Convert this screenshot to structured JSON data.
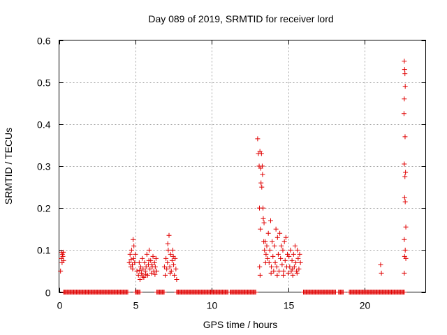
{
  "chart_data": {
    "type": "scatter",
    "title": "Day 089 of 2019, SRMTID for receiver lord",
    "xlabel": "GPS time / hours",
    "ylabel": "SRMTID / TECUs",
    "xlim": [
      0,
      24
    ],
    "ylim": [
      0,
      0.6
    ],
    "xticks": [
      0,
      5,
      10,
      15,
      20
    ],
    "xtick_labels": [
      "0",
      "5",
      "10",
      "15",
      "20"
    ],
    "yticks": [
      0,
      0.1,
      0.2,
      0.3,
      0.4,
      0.5,
      0.6
    ],
    "ytick_labels": [
      "0",
      "0.1",
      "0.2",
      "0.3",
      "0.4",
      "0.5",
      "0.6"
    ],
    "grid": true,
    "marker": "+",
    "color": "#e00000",
    "series": [
      {
        "name": "SRMTID",
        "points": [
          [
            0.1,
            0.05
          ],
          [
            0.15,
            0.08
          ],
          [
            0.18,
            0.095
          ],
          [
            0.2,
            0.07
          ],
          [
            0.22,
            0.09
          ],
          [
            0.25,
            0.085
          ],
          [
            0.28,
            0.095
          ],
          [
            0.3,
            0.075
          ],
          [
            4.6,
            0.07
          ],
          [
            4.65,
            0.09
          ],
          [
            4.7,
            0.06
          ],
          [
            4.75,
            0.1
          ],
          [
            4.8,
            0.065
          ],
          [
            4.85,
            0.125
          ],
          [
            4.88,
            0.08
          ],
          [
            4.9,
            0.11
          ],
          [
            4.95,
            0.07
          ],
          [
            5.0,
            0.09
          ],
          [
            4.72,
            0.078
          ],
          [
            4.82,
            0.055
          ],
          [
            5.1,
            0.05
          ],
          [
            5.2,
            0.04
          ],
          [
            5.25,
            0.07
          ],
          [
            5.3,
            0.03
          ],
          [
            5.35,
            0.06
          ],
          [
            5.4,
            0.045
          ],
          [
            5.45,
            0.08
          ],
          [
            5.5,
            0.055
          ],
          [
            5.55,
            0.035
          ],
          [
            5.6,
            0.07
          ],
          [
            5.65,
            0.05
          ],
          [
            5.7,
            0.06
          ],
          [
            5.75,
            0.09
          ],
          [
            5.8,
            0.04
          ],
          [
            5.85,
            0.065
          ],
          [
            5.9,
            0.1
          ],
          [
            5.95,
            0.055
          ],
          [
            6.0,
            0.075
          ],
          [
            6.05,
            0.045
          ],
          [
            6.1,
            0.06
          ],
          [
            6.15,
            0.085
          ],
          [
            6.2,
            0.05
          ],
          [
            6.25,
            0.07
          ],
          [
            6.3,
            0.06
          ],
          [
            6.35,
            0.08
          ],
          [
            6.4,
            0.05
          ],
          [
            5.28,
            0.052
          ],
          [
            5.48,
            0.038
          ],
          [
            5.68,
            0.042
          ],
          [
            5.88,
            0.075
          ],
          [
            6.08,
            0.065
          ],
          [
            6.28,
            0.042
          ],
          [
            6.9,
            0.06
          ],
          [
            6.95,
            0.04
          ],
          [
            7.0,
            0.08
          ],
          [
            7.05,
            0.055
          ],
          [
            7.1,
            0.07
          ],
          [
            7.15,
            0.1
          ],
          [
            7.2,
            0.135
          ],
          [
            7.25,
            0.06
          ],
          [
            7.3,
            0.09
          ],
          [
            7.35,
            0.05
          ],
          [
            7.4,
            0.075
          ],
          [
            7.45,
            0.1
          ],
          [
            7.5,
            0.065
          ],
          [
            7.55,
            0.04
          ],
          [
            7.6,
            0.08
          ],
          [
            7.65,
            0.055
          ],
          [
            7.7,
            0.03
          ],
          [
            7.12,
            0.115
          ],
          [
            7.28,
            0.045
          ],
          [
            7.48,
            0.085
          ],
          [
            13.0,
            0.365
          ],
          [
            13.05,
            0.33
          ],
          [
            13.1,
            0.3
          ],
          [
            13.12,
            0.2
          ],
          [
            13.15,
            0.335
          ],
          [
            13.18,
            0.15
          ],
          [
            13.2,
            0.295
          ],
          [
            13.22,
            0.26
          ],
          [
            13.25,
            0.33
          ],
          [
            13.27,
            0.25
          ],
          [
            13.3,
            0.3
          ],
          [
            13.32,
            0.28
          ],
          [
            13.35,
            0.2
          ],
          [
            13.37,
            0.175
          ],
          [
            13.4,
            0.12
          ],
          [
            13.42,
            0.165
          ],
          [
            13.45,
            0.1
          ],
          [
            13.5,
            0.12
          ],
          [
            13.55,
            0.09
          ],
          [
            13.6,
            0.11
          ],
          [
            13.65,
            0.08
          ],
          [
            13.7,
            0.14
          ],
          [
            13.75,
            0.07
          ],
          [
            13.8,
            0.1
          ],
          [
            13.85,
            0.17
          ],
          [
            13.9,
            0.06
          ],
          [
            13.95,
            0.12
          ],
          [
            14.0,
            0.085
          ],
          [
            14.05,
            0.05
          ],
          [
            14.1,
            0.11
          ],
          [
            14.15,
            0.07
          ],
          [
            14.2,
            0.15
          ],
          [
            14.25,
            0.06
          ],
          [
            14.3,
            0.13
          ],
          [
            14.35,
            0.09
          ],
          [
            14.4,
            0.05
          ],
          [
            14.45,
            0.14
          ],
          [
            14.5,
            0.08
          ],
          [
            14.55,
            0.11
          ],
          [
            14.6,
            0.065
          ],
          [
            14.65,
            0.1
          ],
          [
            14.7,
            0.05
          ],
          [
            14.75,
            0.12
          ],
          [
            14.8,
            0.075
          ],
          [
            14.85,
            0.13
          ],
          [
            14.9,
            0.06
          ],
          [
            14.95,
            0.09
          ],
          [
            15.0,
            0.045
          ],
          [
            15.05,
            0.085
          ],
          [
            15.1,
            0.06
          ],
          [
            15.15,
            0.1
          ],
          [
            15.2,
            0.05
          ],
          [
            15.25,
            0.075
          ],
          [
            15.3,
            0.04
          ],
          [
            15.35,
            0.09
          ],
          [
            15.4,
            0.06
          ],
          [
            15.45,
            0.11
          ],
          [
            15.5,
            0.07
          ],
          [
            15.55,
            0.05
          ],
          [
            15.6,
            0.1
          ],
          [
            15.65,
            0.08
          ],
          [
            15.7,
            0.055
          ],
          [
            15.75,
            0.09
          ],
          [
            15.8,
            0.07
          ],
          [
            13.13,
            0.06
          ],
          [
            13.16,
            0.04
          ],
          [
            13.52,
            0.07
          ],
          [
            13.88,
            0.045
          ],
          [
            14.28,
            0.04
          ],
          [
            14.68,
            0.04
          ],
          [
            15.28,
            0.055
          ],
          [
            15.58,
            0.045
          ],
          [
            21.05,
            0.065
          ],
          [
            21.1,
            0.045
          ],
          [
            22.6,
            0.55
          ],
          [
            22.62,
            0.53
          ],
          [
            22.64,
            0.52
          ],
          [
            22.66,
            0.49
          ],
          [
            22.6,
            0.46
          ],
          [
            22.58,
            0.425
          ],
          [
            22.65,
            0.37
          ],
          [
            22.6,
            0.305
          ],
          [
            22.68,
            0.285
          ],
          [
            22.64,
            0.275
          ],
          [
            22.62,
            0.225
          ],
          [
            22.66,
            0.215
          ],
          [
            22.7,
            0.155
          ],
          [
            22.6,
            0.125
          ],
          [
            22.66,
            0.1
          ],
          [
            22.62,
            0.085
          ],
          [
            22.7,
            0.08
          ],
          [
            22.6,
            0.045
          ]
        ],
        "zero_ranges": [
          [
            0.3,
            4.5
          ],
          [
            5.0,
            5.3
          ],
          [
            6.4,
            6.9
          ],
          [
            7.7,
            11.1
          ],
          [
            11.2,
            12.9
          ],
          [
            16.0,
            18.1
          ],
          [
            18.3,
            18.6
          ],
          [
            19.0,
            22.6
          ]
        ]
      }
    ]
  }
}
